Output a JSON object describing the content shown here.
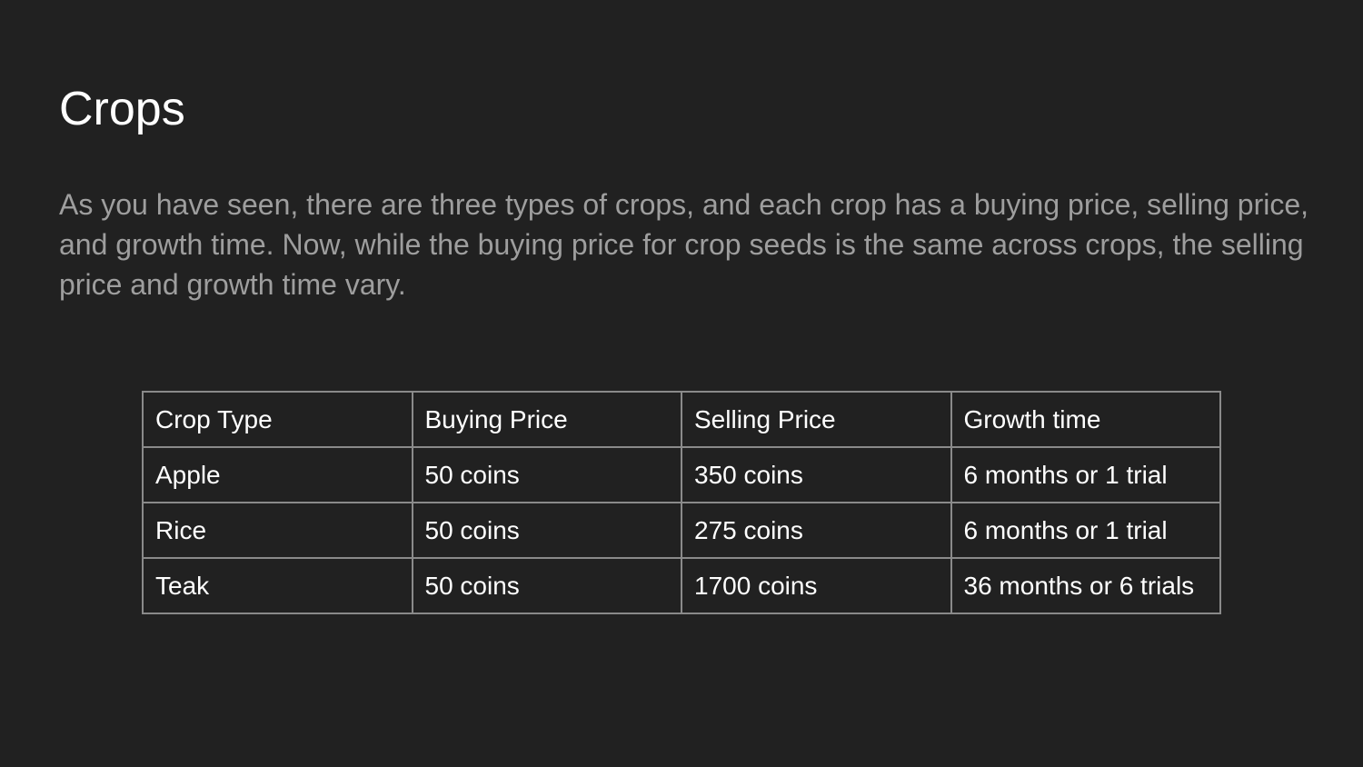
{
  "title": "Crops",
  "body": "As you have seen, there are three types of crops, and each crop has a buying price, selling price, and growth time. Now, while the buying price for crop seeds is the same across crops, the selling price and growth time vary.",
  "table": {
    "headers": [
      "Crop Type",
      "Buying Price",
      "Selling Price",
      "Growth time"
    ],
    "rows": [
      [
        "Apple",
        "50 coins",
        "350 coins",
        "6 months or 1 trial"
      ],
      [
        "Rice",
        "50 coins",
        "275 coins",
        "6 months or 1 trial"
      ],
      [
        "Teak",
        "50 coins",
        "1700 coins",
        "36 months or 6 trials"
      ]
    ]
  },
  "colors": {
    "background": "#212121",
    "title": "#ffffff",
    "body_text": "#9e9e9e",
    "table_border": "#8a8a8a"
  }
}
